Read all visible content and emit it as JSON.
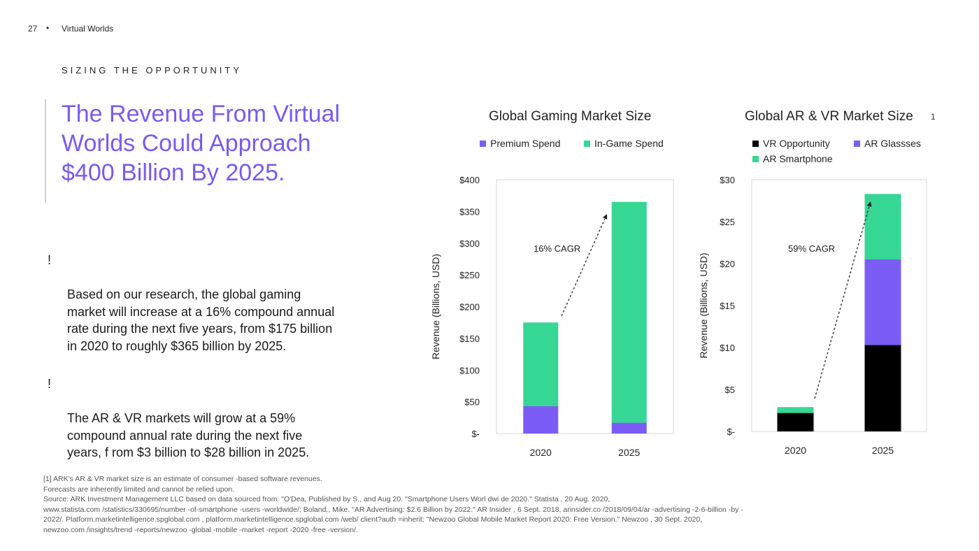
{
  "header": {
    "page_number": "27",
    "separator": "•",
    "title": "Virtual Worlds"
  },
  "section_label": "SIZING THE OPPORTUNITY",
  "headline": "The Revenue From Virtual\nWorlds Could Approach\n$400    Billion By 2025.",
  "bullets": [
    {
      "mark": "!",
      "text": "Based on our research, the global gaming\nmarket will increase at a       16% compound    annual\nrate during the next five years, from $175 billion\nin 2020 to    roughly   $365 billion by 2025."
    },
    {
      "mark": "!",
      "text": "The AR & VR markets will grow at a          59%\ncompound annual rate during the next five\nyears, f  rom $3 billion to $28 billion in 2025."
    }
  ],
  "footnote_ref": "1",
  "footnotes": "[1] ARK's AR & VR market size is an estimate of consumer            -based software revenues.\nForecasts are inherently limited and cannot be relied upon.\nSource: ARK Investment Management LLC based on data sourced from: \"O'Dea, Published by S., and Aug 20. \"Smartphone Users Worl                        dwi de 2020.\"   Statista   , 20 Aug. 2020,\nwww.statista.com   /statistics/330695/number     -of-smartphone   -users -worldwide/; Boland., Mike. \"AR Advertising: $2.6 Billion by 2022.\"          AR Insider   , 6 Sept. 2018,   arinsider.co  /2018/09/04/ar    -advertising  -2-6-billion  -by -\n2022/.  Platform.marketintelligence.spglobal.com          , platform.marketintelligence.spglobal.com          /web/  client?auth   =inherit;  \"Newzoo   Global Mobile Market Report 2020: Free Version.\"          Newzoo  , 30 Sept. 2020,\nnewzoo.com  /insights/trend    -reports/newzoo    -global  -mobile  -market  -report  -2020 -free -version/.",
  "colors": {
    "premium": "#7b5cf5",
    "ingame": "#36d695",
    "vr": "#000000",
    "ar_glasses": "#7b5cf5",
    "ar_smartphone": "#36d695",
    "accent": "#7a5af0"
  },
  "chart_data": [
    {
      "type": "bar",
      "stacked": true,
      "title": "Global Gaming Market Size",
      "ylabel": "Revenue (Billions, USD)",
      "xlabel": "",
      "categories": [
        "2020",
        "2025"
      ],
      "ylim": [
        0,
        400
      ],
      "yticks": [
        0,
        50,
        100,
        150,
        200,
        250,
        300,
        350,
        400
      ],
      "ytick_labels": [
        "$-",
        "$50",
        "$100",
        "$150",
        "$200",
        "$250",
        "$300",
        "$350",
        "$400"
      ],
      "series": [
        {
          "name": "Premium Spend",
          "color": "#7b5cf5",
          "values": [
            43,
            17
          ]
        },
        {
          "name": "In-Game Spend",
          "color": "#36d695",
          "values": [
            132,
            348
          ]
        }
      ],
      "legend": "top",
      "grid": false,
      "annotation": {
        "text": "16% CAGR"
      }
    },
    {
      "type": "bar",
      "stacked": true,
      "title": "Global AR & VR Market Size",
      "ylabel": "Revenue (Billions, USD)",
      "xlabel": "",
      "categories": [
        "2020",
        "2025"
      ],
      "ylim": [
        0,
        30
      ],
      "yticks": [
        0,
        5,
        10,
        15,
        20,
        25,
        30
      ],
      "ytick_labels": [
        "$-",
        "$5",
        "$10",
        "$15",
        "$20",
        "$25",
        "$30"
      ],
      "series": [
        {
          "name": "VR Opportunity",
          "color": "#000000",
          "values": [
            2.2,
            10.3
          ]
        },
        {
          "name": "AR Glassses",
          "color": "#7b5cf5",
          "values": [
            0,
            10.2
          ]
        },
        {
          "name": "AR Smartphone",
          "color": "#36d695",
          "values": [
            0.7,
            7.8
          ]
        }
      ],
      "legend": "top",
      "grid": false,
      "annotation": {
        "text": "59% CAGR"
      }
    }
  ]
}
